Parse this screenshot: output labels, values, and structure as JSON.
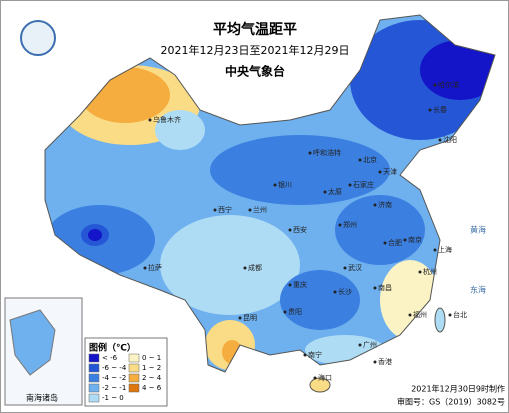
{
  "header": {
    "title": "平均气温距平",
    "subtitle": "2021年12月23日至2021年12月29日",
    "agency": "中央气象台"
  },
  "legend": {
    "title": "图例（℃）",
    "items": [
      {
        "label": "< -6",
        "color": "#1414c8"
      },
      {
        "label": "-6 ~ -4",
        "color": "#2456d6"
      },
      {
        "label": "-4 ~ -2",
        "color": "#3b80e0"
      },
      {
        "label": "-2 ~ -1",
        "color": "#6fb0ee"
      },
      {
        "label": "-1 ~ 0",
        "color": "#aedcf4"
      },
      {
        "label": "0 ~ 1",
        "color": "#fbf3c4"
      },
      {
        "label": "1 ~ 2",
        "color": "#fbdc86"
      },
      {
        "label": "2 ~ 4",
        "color": "#f4ad3e"
      },
      {
        "label": "4 ~ 6",
        "color": "#de760e"
      }
    ]
  },
  "cities": [
    "乌鲁木齐",
    "呼和浩特",
    "北京",
    "天津",
    "石家庄",
    "太原",
    "银川",
    "兰州",
    "西宁",
    "西安",
    "郑州",
    "济南",
    "合肥",
    "南京",
    "上海",
    "武汉",
    "长沙",
    "南昌",
    "杭州",
    "福州",
    "台北",
    "广州",
    "香港",
    "南宁",
    "海口",
    "贵阳",
    "昆明",
    "重庆",
    "成都",
    "拉萨",
    "沈阳",
    "长春",
    "哈尔滨"
  ],
  "seas": [
    "黄海",
    "东海"
  ],
  "inset": {
    "label": "南海诸岛"
  },
  "footer": {
    "made": "2021年12月30日9时制作",
    "approval": "审图号：GS（2019）3082号"
  }
}
